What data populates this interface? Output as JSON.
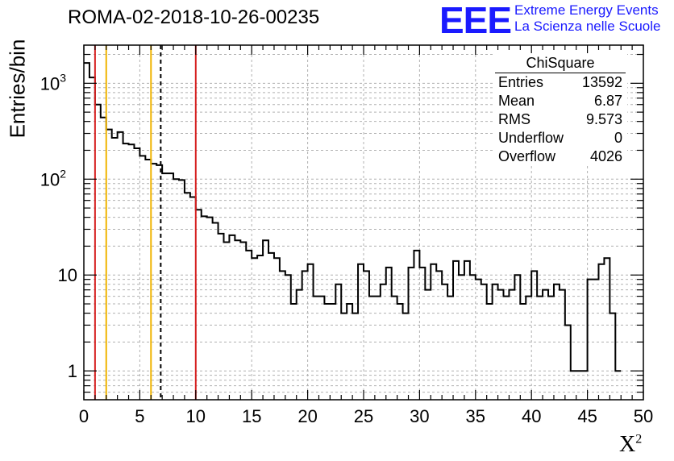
{
  "header": {
    "run_title": "ROMA-02-2018-10-26-00235",
    "logo_text": "EEE",
    "logo_line1": "Extreme Energy Events",
    "logo_line2": "La Scienza nelle Scuole",
    "logo_color": "#1a1aff"
  },
  "stats": {
    "title": "ChiSquare",
    "rows": [
      {
        "label": "Entries",
        "value": "13592"
      },
      {
        "label": "Mean",
        "value": "6.87"
      },
      {
        "label": "RMS",
        "value": "9.573"
      },
      {
        "label": "Underflow",
        "value": "0"
      },
      {
        "label": "Overflow",
        "value": "4026"
      }
    ]
  },
  "chart_data": {
    "type": "histogram",
    "xlabel": "X",
    "xlabel_sup": "2",
    "ylabel": "Entries/bin",
    "xlim": [
      0,
      50
    ],
    "ylim": [
      0.5,
      2500
    ],
    "yscale": "log",
    "grid": true,
    "bin_width": 0.5,
    "x_ticks": [
      0,
      5,
      10,
      15,
      20,
      25,
      30,
      35,
      40,
      45,
      50
    ],
    "y_ticks": [
      {
        "value": 1,
        "label": "1"
      },
      {
        "value": 10,
        "label": "10"
      },
      {
        "value": 100,
        "label": "10",
        "sup": "2"
      },
      {
        "value": 1000,
        "label": "10",
        "sup": "3"
      }
    ],
    "values": [
      1630,
      1150,
      600,
      440,
      330,
      270,
      310,
      235,
      230,
      210,
      175,
      160,
      145,
      140,
      115,
      115,
      100,
      98,
      72,
      65,
      48,
      41,
      40,
      35,
      27,
      22,
      26,
      23,
      22,
      18,
      15,
      16,
      23,
      17,
      15,
      11,
      10,
      5,
      7,
      11,
      13,
      6,
      6,
      5,
      5,
      8,
      4,
      5,
      4,
      13,
      11,
      6,
      6,
      8,
      12,
      6,
      5,
      4,
      12,
      18,
      12,
      7,
      13,
      11,
      8,
      6,
      14,
      10,
      14,
      10,
      9,
      8,
      5,
      8,
      7,
      6,
      7,
      10,
      5,
      6,
      11,
      6,
      7,
      6,
      8,
      7,
      3,
      1,
      1,
      1,
      9,
      9,
      13,
      15,
      4,
      1
    ]
  },
  "vertical_lines": [
    {
      "x": 1.0,
      "color": "#d62020",
      "style": "solid"
    },
    {
      "x": 2.0,
      "color": "#f0b400",
      "style": "solid"
    },
    {
      "x": 6.0,
      "color": "#f0b400",
      "style": "solid"
    },
    {
      "x": 6.87,
      "color": "#000000",
      "style": "dashed"
    },
    {
      "x": 10.0,
      "color": "#d62020",
      "style": "solid"
    }
  ]
}
